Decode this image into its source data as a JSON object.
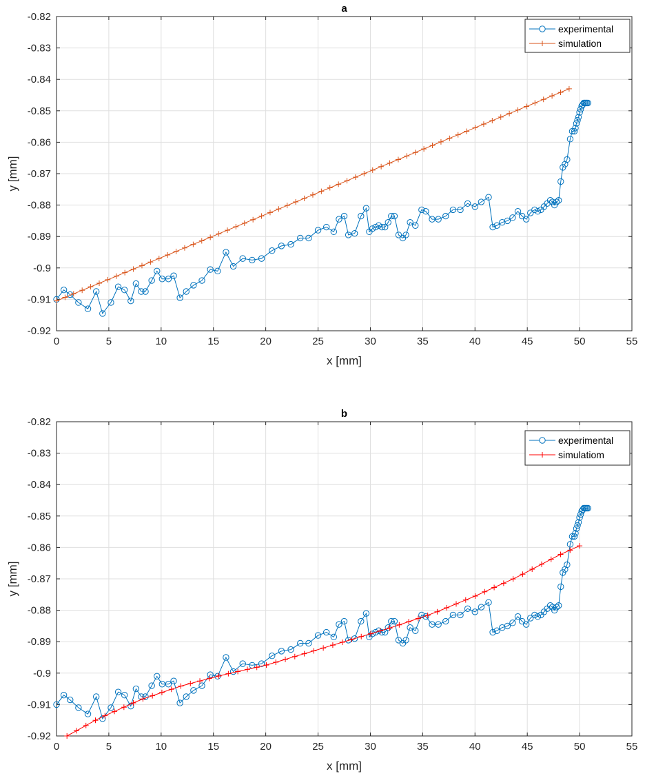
{
  "chart_data": [
    {
      "type": "line",
      "title": "a",
      "xlabel": "x [mm]",
      "ylabel": "y [mm]",
      "xlim": [
        0,
        55
      ],
      "ylim": [
        -0.92,
        -0.82
      ],
      "x_ticks": [
        0,
        5,
        10,
        15,
        20,
        25,
        30,
        35,
        40,
        45,
        50,
        55
      ],
      "x_tick_labels": [
        "0",
        "5",
        "10",
        "15",
        "20",
        "25",
        "30",
        "35",
        "40",
        "45",
        "50",
        "55"
      ],
      "y_ticks": [
        -0.92,
        -0.91,
        -0.9,
        -0.89,
        -0.88,
        -0.87,
        -0.86,
        -0.85,
        -0.84,
        -0.83,
        -0.82
      ],
      "y_tick_labels": [
        "-0.92",
        "-0.91",
        "-0.9",
        "-0.89",
        "-0.88",
        "-0.87",
        "-0.86",
        "-0.85",
        "-0.84",
        "-0.83",
        "-0.82"
      ],
      "grid": true,
      "legend_position": "top-right",
      "series": [
        {
          "name": "experimental",
          "color": "#0072BD",
          "marker": "circle",
          "x": [
            0,
            0.7,
            1.3,
            2.1,
            3.0,
            3.8,
            4.4,
            5.2,
            5.9,
            6.5,
            7.1,
            7.6,
            8.1,
            8.5,
            9.1,
            9.6,
            10.1,
            10.7,
            11.2,
            11.8,
            12.4,
            13.1,
            13.9,
            14.7,
            15.4,
            16.2,
            16.9,
            17.8,
            18.7,
            19.6,
            20.6,
            21.5,
            22.4,
            23.3,
            24.1,
            25.0,
            25.8,
            26.5,
            27.0,
            27.5,
            27.9,
            28.5,
            29.1,
            29.6,
            29.9,
            30.2,
            30.5,
            30.8,
            31.1,
            31.4,
            31.7,
            32.0,
            32.3,
            32.7,
            33.1,
            33.4,
            33.8,
            34.3,
            34.9,
            35.3,
            35.9,
            36.5,
            37.2,
            37.9,
            38.6,
            39.3,
            40.0,
            40.6,
            41.3,
            41.7,
            42.1,
            42.6,
            43.1,
            43.6,
            44.1,
            44.5,
            44.9,
            45.3,
            45.7,
            46.0,
            46.3,
            46.6,
            46.9,
            47.2,
            47.4,
            47.6,
            47.8,
            48.0,
            48.2,
            48.4,
            48.6,
            48.8,
            49.1,
            49.3,
            49.5,
            49.6,
            49.7,
            49.8,
            49.9,
            50.0,
            50.1,
            50.2,
            50.3,
            50.4,
            50.5,
            50.6,
            50.7,
            50.8
          ],
          "values": [
            -0.91,
            -0.907,
            -0.9085,
            -0.911,
            -0.913,
            -0.9075,
            -0.9145,
            -0.911,
            -0.906,
            -0.907,
            -0.9105,
            -0.905,
            -0.9075,
            -0.9075,
            -0.904,
            -0.901,
            -0.9035,
            -0.9035,
            -0.9025,
            -0.9095,
            -0.9075,
            -0.9055,
            -0.904,
            -0.9005,
            -0.901,
            -0.895,
            -0.8995,
            -0.897,
            -0.8975,
            -0.897,
            -0.8945,
            -0.893,
            -0.8925,
            -0.8905,
            -0.8905,
            -0.888,
            -0.887,
            -0.8885,
            -0.8845,
            -0.8835,
            -0.8895,
            -0.889,
            -0.8835,
            -0.881,
            -0.8885,
            -0.8875,
            -0.887,
            -0.8865,
            -0.887,
            -0.887,
            -0.8855,
            -0.8835,
            -0.8835,
            -0.8895,
            -0.8905,
            -0.8895,
            -0.8855,
            -0.8865,
            -0.8815,
            -0.882,
            -0.8845,
            -0.8845,
            -0.8835,
            -0.8815,
            -0.8815,
            -0.8795,
            -0.8805,
            -0.879,
            -0.8775,
            -0.887,
            -0.8865,
            -0.8855,
            -0.885,
            -0.884,
            -0.882,
            -0.8835,
            -0.8845,
            -0.8825,
            -0.8815,
            -0.882,
            -0.8815,
            -0.8805,
            -0.8795,
            -0.8785,
            -0.879,
            -0.88,
            -0.879,
            -0.8785,
            -0.8725,
            -0.868,
            -0.867,
            -0.8655,
            -0.859,
            -0.8565,
            -0.8565,
            -0.8555,
            -0.854,
            -0.853,
            -0.852,
            -0.8505,
            -0.8495,
            -0.8485,
            -0.848,
            -0.8475,
            -0.8475,
            -0.8475,
            -0.8475,
            -0.8475
          ]
        },
        {
          "name": "simulation",
          "color": "#D95319",
          "marker": "plus",
          "x_start": 0,
          "x_end": 49,
          "y_start": -0.9105,
          "y_end": -0.843,
          "n_points": 61
        }
      ]
    },
    {
      "type": "line",
      "title": "b",
      "xlabel": "x [mm]",
      "ylabel": "y [mm]",
      "xlim": [
        0,
        55
      ],
      "ylim": [
        -0.92,
        -0.82
      ],
      "x_ticks": [
        0,
        5,
        10,
        15,
        20,
        25,
        30,
        35,
        40,
        45,
        50,
        55
      ],
      "x_tick_labels": [
        "0",
        "5",
        "10",
        "15",
        "20",
        "25",
        "30",
        "35",
        "40",
        "45",
        "50",
        "55"
      ],
      "y_ticks": [
        -0.92,
        -0.91,
        -0.9,
        -0.89,
        -0.88,
        -0.87,
        -0.86,
        -0.85,
        -0.84,
        -0.83,
        -0.82
      ],
      "y_tick_labels": [
        "-0.92",
        "-0.91",
        "-0.9",
        "-0.89",
        "-0.88",
        "-0.87",
        "-0.86",
        "-0.85",
        "-0.84",
        "-0.83",
        "-0.82"
      ],
      "grid": true,
      "legend_position": "top-right",
      "series": [
        {
          "name": "experimental",
          "color": "#0072BD",
          "marker": "circle",
          "same_as": "a.experimental"
        },
        {
          "name": "simulatiom",
          "color": "#FF0000",
          "marker": "plus",
          "x": [
            1,
            4,
            8,
            12,
            16,
            20,
            24,
            28,
            32,
            36,
            40,
            44,
            48,
            50
          ],
          "values": [
            -0.92,
            -0.9145,
            -0.9085,
            -0.904,
            -0.9005,
            -0.8975,
            -0.8935,
            -0.8895,
            -0.8855,
            -0.881,
            -0.8755,
            -0.8695,
            -0.8625,
            -0.8595
          ],
          "n_points": 55
        }
      ]
    }
  ]
}
